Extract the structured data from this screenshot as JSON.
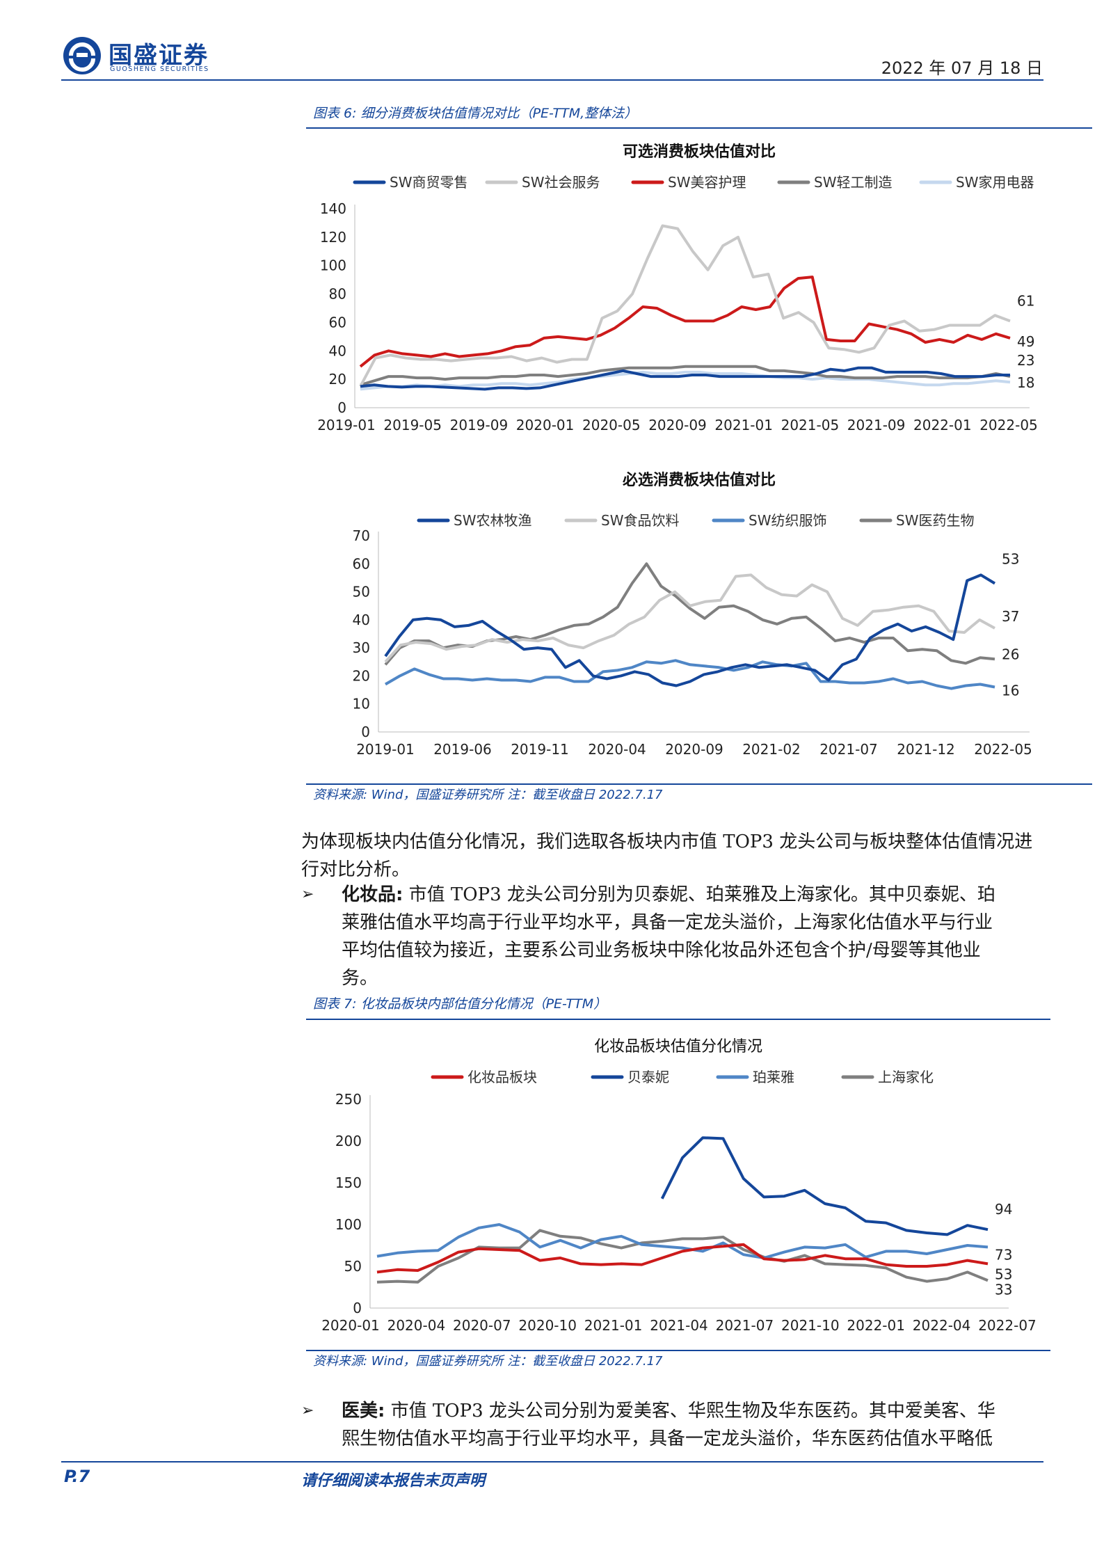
{
  "header": {
    "logo_cn": "国盛证券",
    "logo_en": "GUOSHENG SECURITIES",
    "date": "2022 年 07 月 18 日"
  },
  "figure6": {
    "caption": "图表 6:  细分消费板块估值情况对比（PE-TTM,整体法）",
    "chart_a": {
      "title": "可选消费板块估值对比",
      "type": "line",
      "ylim": [
        0,
        140
      ],
      "yticks": [
        "0",
        "20",
        "40",
        "60",
        "80",
        "100",
        "120",
        "140"
      ],
      "xticks": [
        "2019-01",
        "2019-05",
        "2019-09",
        "2020-01",
        "2020-05",
        "2020-09",
        "2021-01",
        "2021-05",
        "2021-09",
        "2022-01",
        "2022-05"
      ],
      "series": [
        {
          "name": "SW商贸零售",
          "color": "#14469a",
          "end_label": "23",
          "values": [
            15,
            16,
            15,
            14.5,
            15,
            15,
            14.5,
            14,
            13.5,
            13,
            14,
            14,
            13.5,
            14,
            16,
            18,
            20,
            22,
            24,
            26,
            24,
            22,
            22,
            22,
            23,
            23,
            22,
            22,
            22,
            22,
            22,
            22,
            22,
            24,
            27,
            26,
            28,
            28,
            25,
            25,
            25,
            25,
            24,
            22,
            22,
            22,
            23,
            23
          ]
        },
        {
          "name": "SW社会服务",
          "color": "#c8c8c8",
          "end_label": "61",
          "values": [
            15,
            35,
            37,
            35,
            34,
            34,
            33,
            34,
            35,
            35,
            36,
            33,
            35,
            32,
            34,
            34,
            63,
            68,
            80,
            105,
            128,
            126,
            110,
            97,
            114,
            120,
            92,
            94,
            63,
            67,
            60,
            42,
            41,
            39,
            42,
            58,
            61,
            54,
            55,
            58,
            58,
            58,
            65,
            61
          ]
        },
        {
          "name": "SW美容护理",
          "color": "#cc1a1a",
          "end_label": "49",
          "values": [
            29,
            37,
            40,
            38,
            37,
            36,
            38,
            36,
            37,
            38,
            40,
            43,
            44,
            49,
            50,
            49,
            48,
            51,
            56,
            63,
            71,
            70,
            65,
            61,
            61,
            61,
            65,
            71,
            69,
            71,
            84,
            91,
            92,
            48,
            47,
            47,
            59,
            57,
            55,
            52,
            46,
            48,
            46,
            51,
            48,
            52,
            49
          ]
        },
        {
          "name": "SW轻工制造",
          "color": "#7f7f7f",
          "end_label": "",
          "values": [
            16,
            19,
            22,
            22,
            21,
            21,
            20,
            21,
            21,
            21,
            22,
            22,
            23,
            23,
            22,
            23,
            24,
            26,
            27,
            28,
            28,
            28,
            28,
            29,
            29,
            29,
            29,
            29,
            29,
            26,
            26,
            25,
            24,
            22,
            22,
            21,
            21,
            21,
            22,
            22,
            22,
            21,
            21,
            21,
            22,
            24,
            22
          ]
        },
        {
          "name": "SW家用电器",
          "color": "#c5d8ee",
          "end_label": "18",
          "values": [
            13,
            14,
            15,
            15,
            16,
            15,
            16,
            15,
            16,
            16,
            17,
            17,
            16,
            17,
            18,
            20,
            21,
            22,
            23,
            24,
            25,
            24,
            24,
            25,
            25,
            24,
            24,
            24,
            23,
            22,
            21,
            21,
            20,
            21,
            20,
            20,
            20,
            19,
            18,
            17,
            16,
            16,
            17,
            17,
            18,
            19,
            18
          ]
        }
      ]
    },
    "chart_b": {
      "title": "必选消费板块估值对比",
      "type": "line",
      "ylim": [
        0,
        70
      ],
      "yticks": [
        "0",
        "10",
        "20",
        "30",
        "40",
        "50",
        "60",
        "70"
      ],
      "xticks": [
        "2019-01",
        "2019-06",
        "2019-11",
        "2020-04",
        "2020-09",
        "2021-02",
        "2021-07",
        "2021-12",
        "2022-05"
      ],
      "series": [
        {
          "name": "SW农林牧渔",
          "color": "#14469a",
          "end_label": "53",
          "values": [
            27,
            34,
            40,
            40.5,
            40,
            37.5,
            38,
            39.5,
            36,
            33,
            29.5,
            30,
            29.5,
            23,
            25.5,
            20,
            19,
            20,
            21.5,
            20.5,
            17.5,
            16.5,
            18,
            20.5,
            21.5,
            23,
            24,
            23,
            23.5,
            24,
            23,
            22,
            18.5,
            24,
            26,
            33.5,
            36.5,
            38.5,
            36,
            37.5,
            35.5,
            33,
            54,
            56,
            53
          ]
        },
        {
          "name": "SW食品饮料",
          "color": "#c8c8c8",
          "end_label": "37",
          "values": [
            25,
            31,
            32,
            31.5,
            29.5,
            30.5,
            31,
            33,
            32,
            33,
            32.5,
            33.5,
            31,
            30,
            32.5,
            34.5,
            38.5,
            41,
            47,
            50,
            45,
            46.5,
            47,
            55.5,
            56,
            51.5,
            49,
            48.5,
            52.5,
            50,
            40.5,
            38,
            43,
            43.5,
            44.5,
            45,
            43,
            36,
            35.5,
            40,
            37
          ]
        },
        {
          "name": "SW纺织服饰",
          "color": "#4f86c6",
          "end_label": "16",
          "values": [
            17,
            20,
            22.5,
            20.5,
            19,
            19,
            18.5,
            19,
            18.5,
            18.5,
            18,
            19.5,
            19.5,
            18,
            18,
            21.5,
            22,
            23,
            25,
            24.5,
            25.5,
            24,
            23.5,
            23,
            22,
            23,
            25,
            24,
            23.5,
            24.5,
            18,
            18,
            17.5,
            17.5,
            18,
            19,
            17.5,
            18,
            16.5,
            15.5,
            16.5,
            17,
            16
          ]
        },
        {
          "name": "SW医药生物",
          "color": "#7f7f7f",
          "end_label": "26",
          "values": [
            24,
            30,
            32.5,
            32.5,
            30,
            31,
            30.5,
            32.5,
            33,
            34,
            33,
            34.5,
            36.5,
            38,
            38.5,
            41,
            44.5,
            53,
            60,
            52,
            48.5,
            44,
            40.5,
            44.5,
            45,
            43,
            40,
            38.5,
            40.5,
            41,
            37,
            32.5,
            33.5,
            32,
            33.5,
            33.5,
            29,
            29.5,
            29,
            25.5,
            24.5,
            26.5,
            26
          ]
        }
      ]
    },
    "source": "资料来源:  Wind，国盛证券研究所 注：截至收盘日 2022.7.17"
  },
  "paragraph1": "为体现板块内估值分化情况，我们选取各板块内市值 TOP3 龙头公司与板块整体估值情况进行对比分析。",
  "bullet1": {
    "marker": "➢",
    "keyword": "化妆品:",
    "lines": [
      " 市值 TOP3 龙头公司分别为贝泰妮、珀莱雅及上海家化。其中贝泰妮、珀",
      "莱雅估值水平均高于行业平均水平，具备一定龙头溢价，上海家化估值水平与行业",
      "平均估值较为接近，主要系公司业务板块中除化妆品外还包含个护/母婴等其他业",
      "务。"
    ]
  },
  "figure7": {
    "caption": "图表 7:  化妆品板块内部估值分化情况（PE-TTM）",
    "chart": {
      "title": "化妆品板块估值分化情况",
      "type": "line",
      "ylim": [
        0,
        250
      ],
      "yticks": [
        "0",
        "50",
        "100",
        "150",
        "200",
        "250"
      ],
      "xticks": [
        "2020-01",
        "2020-04",
        "2020-07",
        "2020-10",
        "2021-01",
        "2021-04",
        "2021-07",
        "2021-10",
        "2022-01",
        "2022-04",
        "2022-07"
      ],
      "series": [
        {
          "name": "化妆品板块",
          "color": "#cc1a1a",
          "end_label": "53",
          "values": [
            43,
            46,
            45,
            55,
            67,
            71,
            70,
            69,
            57,
            60,
            53,
            52,
            53,
            52,
            60,
            68,
            72,
            74,
            76,
            59,
            57,
            58,
            63,
            59,
            59,
            52,
            50,
            50,
            52,
            57,
            53
          ]
        },
        {
          "name": "贝泰妮",
          "color": "#14469a",
          "end_label": "94",
          "values": [
            null,
            null,
            null,
            null,
            null,
            null,
            null,
            null,
            null,
            null,
            null,
            null,
            null,
            null,
            131,
            180,
            204,
            203,
            155,
            133,
            134,
            141,
            125,
            120,
            104,
            102,
            93,
            90,
            88,
            99,
            94
          ]
        },
        {
          "name": "珀莱雅",
          "color": "#4f86c6",
          "end_label": "73",
          "values": [
            62,
            66,
            68,
            69,
            85,
            96,
            100,
            91,
            73,
            81,
            72,
            82,
            86,
            76,
            74,
            72,
            68,
            78,
            64,
            60,
            67,
            73,
            72,
            76,
            61,
            68,
            68,
            65,
            70,
            75,
            73
          ]
        },
        {
          "name": "上海家化",
          "color": "#7f7f7f",
          "end_label": "33",
          "values": [
            31,
            32,
            31,
            50,
            60,
            73,
            72,
            72,
            93,
            86,
            84,
            77,
            72,
            78,
            80,
            83,
            83,
            85,
            70,
            61,
            56,
            63,
            53,
            52,
            51,
            48,
            37,
            32,
            35,
            43,
            33
          ]
        }
      ]
    },
    "source": "资料来源:  Wind，国盛证券研究所 注：截至收盘日 2022.7.17"
  },
  "bullet2": {
    "marker": "➢",
    "keyword": "医美:",
    "lines": [
      " 市值 TOP3 龙头公司分别为爱美客、华熙生物及华东医药。其中爱美客、华",
      "熙生物估值水平均高于行业平均水平，具备一定龙头溢价，华东医药估值水平略低"
    ]
  },
  "footer": {
    "page": "P.7",
    "notice": "请仔细阅读本报告末页声明"
  }
}
